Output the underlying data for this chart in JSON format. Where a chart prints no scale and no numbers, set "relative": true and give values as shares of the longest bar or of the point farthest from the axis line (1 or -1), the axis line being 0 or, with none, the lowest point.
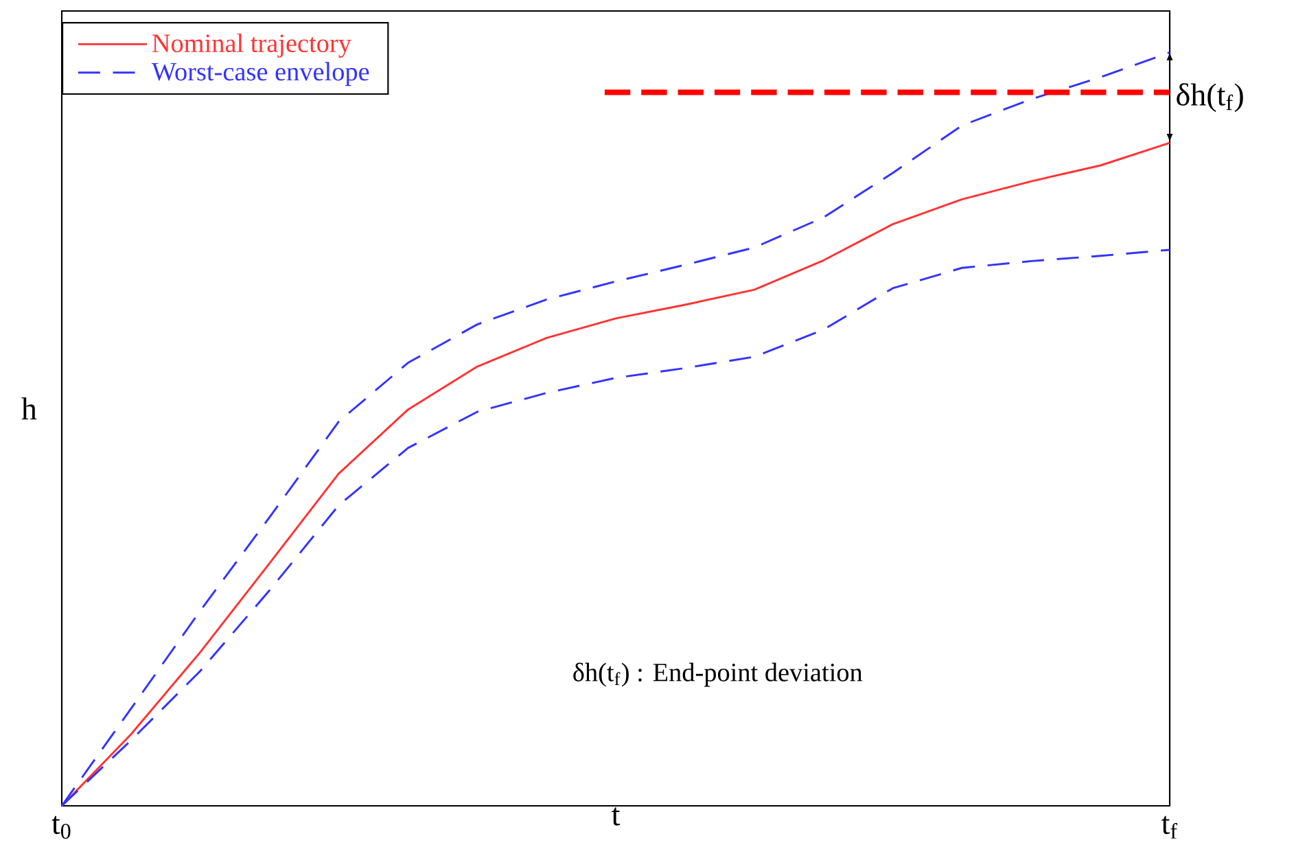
{
  "chart_data": {
    "type": "line",
    "relative": true,
    "xlabel": "t",
    "ylabel": "h",
    "categories": [
      "t$_{0}$",
      null,
      null,
      null,
      null,
      null,
      null,
      null,
      null,
      null,
      null,
      null,
      null,
      null,
      null,
      null,
      "t$_{f}$"
    ],
    "legend": "top left",
    "grid": false,
    "series": [
      {
        "name": "Nominal trajectory",
        "color": "#ff3333",
        "line_style": "solid",
        "values": [
          0,
          0.095,
          0.204,
          0.322,
          0.441,
          0.526,
          0.583,
          0.621,
          0.647,
          0.665,
          0.685,
          0.724,
          0.772,
          0.805,
          0.829,
          0.85,
          0.88
        ]
      },
      {
        "name": "Worst-case envelope",
        "color": "#3333ff",
        "line_style": "dashed",
        "values": [
          0,
          0.129,
          0.259,
          0.383,
          0.51,
          0.588,
          0.639,
          0.672,
          0.696,
          0.718,
          0.741,
          0.781,
          0.84,
          0.903,
          0.938,
          0.967,
          1
        ]
      },
      {
        "color": "#3333ff",
        "line_style": "dashed",
        "values": [
          0,
          0.087,
          0.179,
          0.286,
          0.399,
          0.475,
          0.523,
          0.548,
          0.568,
          0.581,
          0.596,
          0.632,
          0.687,
          0.714,
          0.723,
          0.73,
          0.738
        ]
      }
    ],
    "ref_lines": [
      {
        "axis": "y",
        "value": 0.947,
        "color": "#ff0000",
        "line_style": "dashed"
      }
    ],
    "annotations": [
      {
        "text": "δh(t$_{f}$)",
        "x": "t$_{f}$",
        "y": 0.94
      },
      "δh(t$_{f}$) : End-point deviation"
    ]
  }
}
